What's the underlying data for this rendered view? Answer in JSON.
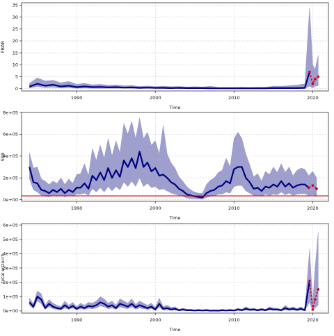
{
  "chart_data": [
    {
      "type": "area",
      "ylabel": "FBAR",
      "xlabel": "Time",
      "xlim": [
        1983,
        2022
      ],
      "ylim": [
        -1,
        36
      ],
      "xticks": [
        1990,
        2000,
        2010,
        2020
      ],
      "yticks": [
        0,
        5,
        10,
        15,
        20,
        25,
        30,
        35
      ],
      "grid": true,
      "series": [
        {
          "x": [
            1984,
            1985,
            1986,
            1987,
            1988,
            1989,
            1990,
            1991,
            1992,
            1993,
            1994,
            1995,
            1996,
            1997,
            1998,
            1999,
            2000,
            2001,
            2002,
            2003,
            2004,
            2005,
            2006,
            2007,
            2008,
            2009,
            2010,
            2011,
            2012,
            2013,
            2014,
            2015,
            2016,
            2017,
            2018,
            2019,
            2019.6,
            2020,
            2020.3,
            2020.7
          ],
          "y": [
            0.8,
            2.0,
            1.2,
            1.6,
            0.9,
            1.2,
            0.6,
            0.9,
            0.6,
            0.7,
            0.5,
            0.6,
            0.4,
            0.5,
            0.3,
            0.4,
            0.3,
            0.3,
            0.2,
            0.3,
            0.2,
            0.2,
            0.2,
            0.1,
            0.1,
            0.1,
            0.1,
            0.1,
            0.1,
            0.1,
            0.1,
            0.2,
            0.2,
            0.2,
            0.2,
            0.3,
            7.0,
            2.0,
            4.0,
            5.0
          ],
          "lower": [
            0.2,
            0.8,
            0.4,
            0.5,
            0.2,
            0.3,
            0.1,
            0.2,
            0.1,
            0.1,
            0.1,
            0.1,
            0.1,
            0.1,
            0.0,
            0.1,
            0.0,
            0.0,
            0.0,
            0.0,
            0.0,
            0.0,
            0.0,
            0.0,
            0.0,
            0.0,
            0.0,
            0.0,
            0.0,
            0.0,
            0.0,
            0.0,
            0.0,
            0.0,
            0.0,
            0.0,
            1.0,
            0.2,
            1.0,
            1.2
          ],
          "upper": [
            2.2,
            4.5,
            3.2,
            3.5,
            2.4,
            3.0,
            1.8,
            2.2,
            1.6,
            1.8,
            1.4,
            1.5,
            1.2,
            1.3,
            0.9,
            1.1,
            0.8,
            1.0,
            0.8,
            0.9,
            0.7,
            0.8,
            0.7,
            1.0,
            0.5,
            0.5,
            0.5,
            0.6,
            0.5,
            0.6,
            0.6,
            1.0,
            1.0,
            1.2,
            1.5,
            2.0,
            34.0,
            10.0,
            8.0,
            14.0
          ],
          "projection_from": 2019.6
        }
      ]
    },
    {
      "type": "area",
      "ylabel": "SSB",
      "xlabel": "Time",
      "xlim": [
        1983,
        2022
      ],
      "ylim": [
        -15000,
        800000
      ],
      "xticks": [
        1990,
        2000,
        2010,
        2020
      ],
      "yticks": [
        0,
        200000,
        400000,
        600000,
        800000
      ],
      "ytick_labels": [
        "0e+00",
        "2e+05",
        "4e+05",
        "6e+05",
        "8e+05"
      ],
      "grid": true,
      "reference_line": 35000,
      "series": [
        {
          "x": [
            1984,
            1984.5,
            1985,
            1985.5,
            1986,
            1986.5,
            1987,
            1987.5,
            1988,
            1988.5,
            1989,
            1989.5,
            1990,
            1990.5,
            1991,
            1991.5,
            1992,
            1992.5,
            1993,
            1993.5,
            1994,
            1994.5,
            1995,
            1995.5,
            1996,
            1996.5,
            1997,
            1997.5,
            1998,
            1998.5,
            1999,
            1999.5,
            2000,
            2000.5,
            2001,
            2001.5,
            2002,
            2002.5,
            2003,
            2003.5,
            2004,
            2004.5,
            2005,
            2005.5,
            2006,
            2006.5,
            2007,
            2007.5,
            2008,
            2008.5,
            2009,
            2009.5,
            2010,
            2010.5,
            2011,
            2011.5,
            2012,
            2012.5,
            2013,
            2013.5,
            2014,
            2014.5,
            2015,
            2015.5,
            2016,
            2016.5,
            2017,
            2017.5,
            2018,
            2018.5,
            2019,
            2019.5,
            2020,
            2020.5
          ],
          "y": [
            300000,
            160000,
            150000,
            90000,
            80000,
            60000,
            90000,
            70000,
            100000,
            60000,
            90000,
            70000,
            110000,
            110000,
            150000,
            100000,
            220000,
            180000,
            250000,
            180000,
            290000,
            200000,
            270000,
            210000,
            360000,
            300000,
            380000,
            290000,
            440000,
            300000,
            340000,
            260000,
            290000,
            220000,
            230000,
            200000,
            160000,
            140000,
            100000,
            80000,
            50000,
            40000,
            30000,
            25000,
            20000,
            60000,
            80000,
            90000,
            120000,
            130000,
            170000,
            150000,
            280000,
            300000,
            300000,
            200000,
            160000,
            100000,
            110000,
            80000,
            120000,
            110000,
            140000,
            120000,
            170000,
            120000,
            150000,
            110000,
            130000,
            140000,
            140000,
            110000,
            130000,
            100000
          ],
          "lower": [
            190000,
            90000,
            70000,
            40000,
            30000,
            25000,
            40000,
            30000,
            40000,
            25000,
            40000,
            30000,
            50000,
            50000,
            60000,
            40000,
            100000,
            70000,
            110000,
            70000,
            120000,
            80000,
            120000,
            90000,
            160000,
            120000,
            170000,
            120000,
            200000,
            120000,
            150000,
            110000,
            120000,
            90000,
            100000,
            80000,
            60000,
            50000,
            40000,
            30000,
            15000,
            10000,
            8000,
            6000,
            4000,
            20000,
            30000,
            35000,
            50000,
            50000,
            70000,
            60000,
            120000,
            130000,
            130000,
            80000,
            60000,
            40000,
            40000,
            30000,
            50000,
            40000,
            50000,
            45000,
            70000,
            45000,
            60000,
            40000,
            50000,
            55000,
            55000,
            40000,
            45000,
            30000
          ],
          "upper": [
            430000,
            290000,
            300000,
            190000,
            170000,
            140000,
            170000,
            150000,
            200000,
            140000,
            190000,
            150000,
            230000,
            240000,
            330000,
            220000,
            470000,
            360000,
            500000,
            380000,
            560000,
            400000,
            540000,
            430000,
            700000,
            600000,
            720000,
            560000,
            750000,
            560000,
            620000,
            500000,
            540000,
            420000,
            680000,
            420000,
            340000,
            290000,
            210000,
            170000,
            120000,
            90000,
            70000,
            60000,
            60000,
            140000,
            180000,
            200000,
            250000,
            270000,
            380000,
            300000,
            560000,
            620000,
            560000,
            420000,
            320000,
            210000,
            240000,
            170000,
            260000,
            230000,
            300000,
            250000,
            330000,
            250000,
            300000,
            220000,
            270000,
            290000,
            280000,
            220000,
            260000,
            200000
          ],
          "projection_from": 2019.5
        }
      ]
    },
    {
      "type": "area",
      "ylabel": "total.wstocrh",
      "xlabel": "Time",
      "xlim": [
        1983,
        2022
      ],
      "ylim": [
        -15000,
        610000
      ],
      "xticks": [
        1990,
        2000,
        2010,
        2020
      ],
      "yticks": [
        0,
        100000,
        200000,
        300000,
        400000,
        500000,
        600000
      ],
      "ytick_labels": [
        "0e+00",
        "1e+05",
        "2e+05",
        "3e+05",
        "4e+05",
        "5e+05",
        "6e+05"
      ],
      "grid": true,
      "series": [
        {
          "x": [
            1984,
            1984.5,
            1985,
            1985.5,
            1986,
            1986.5,
            1987,
            1987.5,
            1988,
            1988.5,
            1989,
            1989.5,
            1990,
            1990.5,
            1991,
            1991.5,
            1992,
            1992.5,
            1993,
            1993.5,
            1994,
            1994.5,
            1995,
            1995.5,
            1996,
            1996.5,
            1997,
            1997.5,
            1998,
            1998.5,
            1999,
            1999.5,
            2000,
            2000.5,
            2001,
            2001.5,
            2002,
            2002.5,
            2003,
            2003.5,
            2004,
            2004.5,
            2005,
            2005.5,
            2006,
            2006.5,
            2007,
            2007.5,
            2008,
            2008.5,
            2009,
            2009.5,
            2010,
            2010.5,
            2011,
            2011.5,
            2012,
            2012.5,
            2013,
            2013.5,
            2014,
            2014.5,
            2015,
            2015.5,
            2016,
            2016.5,
            2017,
            2017.5,
            2018,
            2018.5,
            2019,
            2019.6,
            2020,
            2020.3,
            2020.7
          ],
          "y": [
            60000,
            30000,
            100000,
            80000,
            20000,
            50000,
            30000,
            20000,
            15000,
            40000,
            20000,
            35000,
            15000,
            30000,
            20000,
            35000,
            30000,
            40000,
            60000,
            50000,
            30000,
            40000,
            20000,
            50000,
            40000,
            30000,
            50000,
            25000,
            40000,
            30000,
            20000,
            30000,
            10000,
            50000,
            15000,
            20000,
            10000,
            15000,
            5000,
            10000,
            5000,
            5000,
            3000,
            5000,
            3000,
            5000,
            2000,
            3000,
            2000,
            5000,
            3000,
            5000,
            3000,
            10000,
            5000,
            15000,
            8000,
            10000,
            5000,
            10000,
            5000,
            15000,
            10000,
            10000,
            5000,
            20000,
            10000,
            15000,
            8000,
            15000,
            5000,
            210000,
            10000,
            80000,
            150000
          ],
          "lower": [
            40000,
            15000,
            70000,
            50000,
            10000,
            30000,
            15000,
            10000,
            7000,
            20000,
            10000,
            20000,
            7000,
            15000,
            10000,
            18000,
            15000,
            20000,
            35000,
            28000,
            15000,
            20000,
            10000,
            28000,
            20000,
            15000,
            28000,
            12000,
            20000,
            15000,
            10000,
            15000,
            4000,
            25000,
            6000,
            8000,
            4000,
            6000,
            2000,
            4000,
            2000,
            2000,
            1000,
            2000,
            1000,
            2000,
            500,
            1000,
            500,
            2000,
            1000,
            2000,
            1000,
            4000,
            2000,
            6000,
            3000,
            4000,
            2000,
            4000,
            2000,
            6000,
            4000,
            4000,
            2000,
            8000,
            4000,
            6000,
            3000,
            6000,
            2000,
            60000,
            2000,
            20000,
            40000
          ],
          "upper": [
            90000,
            50000,
            140000,
            120000,
            40000,
            80000,
            55000,
            40000,
            30000,
            70000,
            40000,
            60000,
            30000,
            55000,
            40000,
            60000,
            55000,
            70000,
            100000,
            85000,
            55000,
            70000,
            40000,
            85000,
            70000,
            55000,
            85000,
            45000,
            70000,
            55000,
            40000,
            55000,
            25000,
            90000,
            30000,
            40000,
            25000,
            30000,
            12000,
            20000,
            12000,
            12000,
            8000,
            12000,
            8000,
            12000,
            6000,
            8000,
            6000,
            12000,
            8000,
            12000,
            8000,
            20000,
            12000,
            30000,
            18000,
            20000,
            12000,
            20000,
            12000,
            30000,
            20000,
            20000,
            12000,
            40000,
            20000,
            30000,
            18000,
            30000,
            12000,
            430000,
            60000,
            300000,
            550000
          ],
          "projection_from": 2019.6
        }
      ]
    }
  ]
}
